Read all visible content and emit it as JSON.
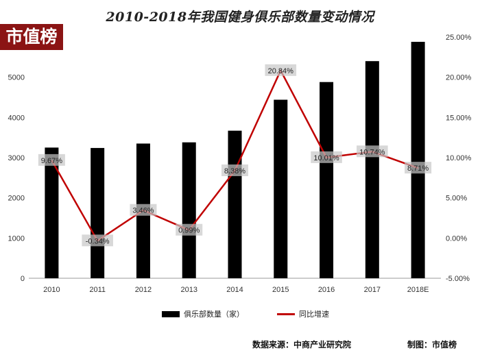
{
  "title": "2010-2018年我国健身俱乐部数量变动情况",
  "logo_text": "市值榜",
  "footer": {
    "source": "数据来源：中商产业研究院",
    "maker": "制图：市值榜"
  },
  "colors": {
    "bar": "#000000",
    "line": "#c00000",
    "logo_bg": "#8b1414"
  },
  "chart_data": {
    "type": "bar+line",
    "categories": [
      "2010",
      "2011",
      "2012",
      "2013",
      "2014",
      "2015",
      "2016",
      "2017",
      "2018E"
    ],
    "series": [
      {
        "name": "俱乐部数量（家）",
        "type": "bar",
        "axis": "left",
        "values": [
          3250,
          3240,
          3350,
          3380,
          3670,
          4440,
          4880,
          5400,
          5880
        ]
      },
      {
        "name": "同比增速",
        "type": "line",
        "axis": "right",
        "values": [
          9.67,
          -0.34,
          3.46,
          0.99,
          8.38,
          20.84,
          10.01,
          10.74,
          8.71
        ],
        "labels": [
          "9.67%",
          "-0.34%",
          "3.46%",
          "0.99%",
          "8.38%",
          "20.84%",
          "10.01%",
          "10.74%",
          "8.71%"
        ]
      }
    ],
    "y_left": {
      "ticks": [
        "0",
        "1000",
        "2000",
        "3000",
        "4000",
        "5000"
      ],
      "lim": [
        0,
        6000
      ]
    },
    "y_right": {
      "ticks": [
        "-5.00%",
        "0.00%",
        "5.00%",
        "10.00%",
        "15.00%",
        "20.00%",
        "25.00%"
      ],
      "lim": [
        -5,
        25
      ]
    },
    "grid": false,
    "legend_position": "bottom"
  }
}
